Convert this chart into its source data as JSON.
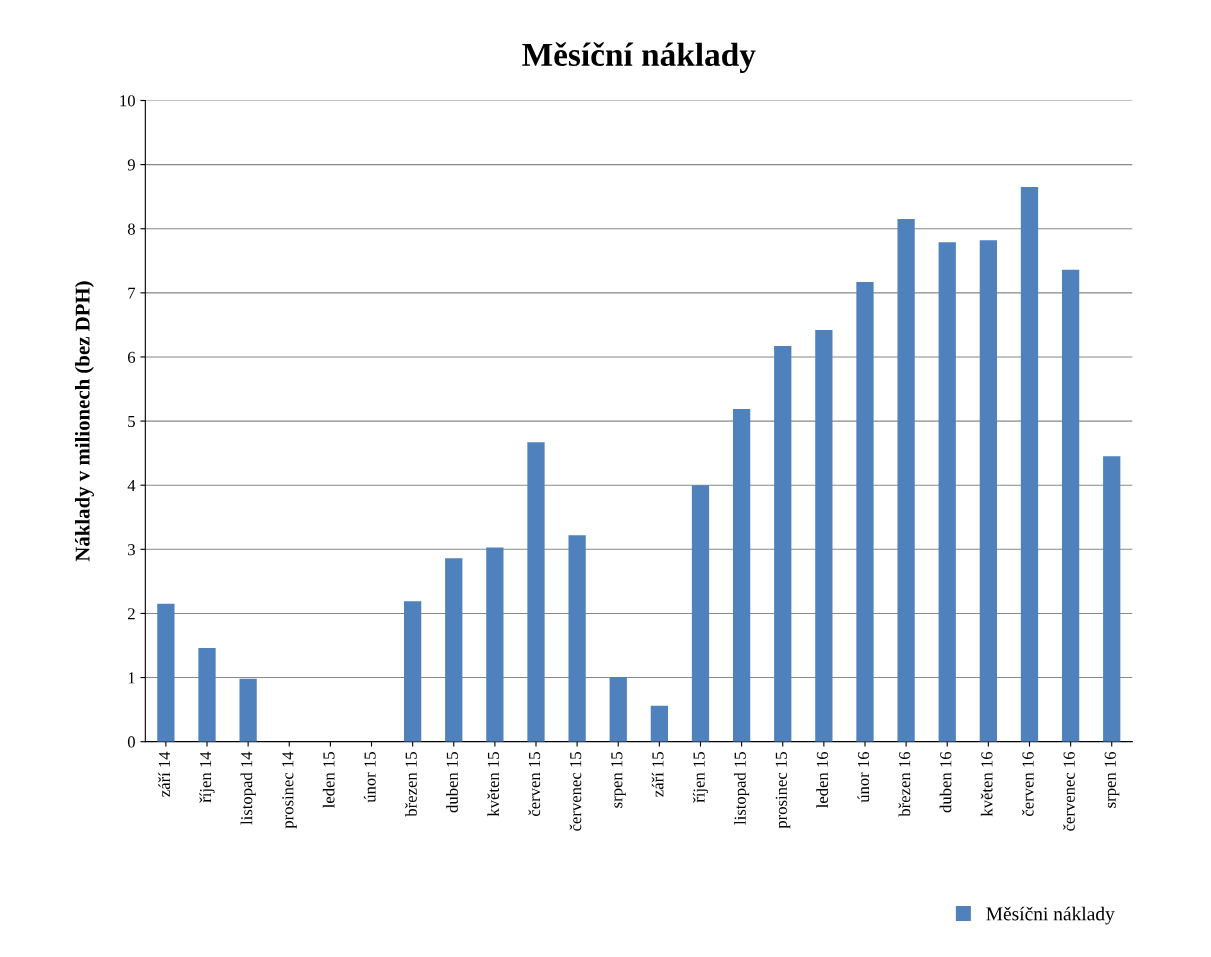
{
  "chart_data": {
    "type": "bar",
    "title": "Měsíční náklady",
    "ylabel": "Náklady v milionech (bez DPH)",
    "categories": [
      "září 14",
      "říjen 14",
      "listopad 14",
      "prosinec 14",
      "leden 15",
      "únor 15",
      "březen 15",
      "duben 15",
      "květen 15",
      "červen 15",
      "červenec 15",
      "srpen 15",
      "září 15",
      "říjen 15",
      "listopad 15",
      "prosinec 15",
      "leden 16",
      "únor 16",
      "březen 16",
      "duben 16",
      "květen 16",
      "červen 16",
      "červenec 16",
      "srpen 16"
    ],
    "series": [
      {
        "name": "Měsíčni náklady",
        "color": "#4f81bd",
        "values": [
          2.15,
          1.46,
          0.98,
          0,
          0,
          0,
          2.19,
          2.86,
          3.03,
          4.67,
          3.22,
          1.01,
          0.56,
          4.0,
          5.19,
          6.17,
          6.42,
          7.17,
          8.15,
          7.79,
          7.82,
          8.65,
          7.36,
          4.45
        ]
      }
    ],
    "ylim": [
      0,
      10
    ],
    "yticks": [
      0,
      1,
      2,
      3,
      4,
      5,
      6,
      7,
      8,
      9,
      10
    ],
    "grid": "y",
    "legend": "bottom right"
  }
}
